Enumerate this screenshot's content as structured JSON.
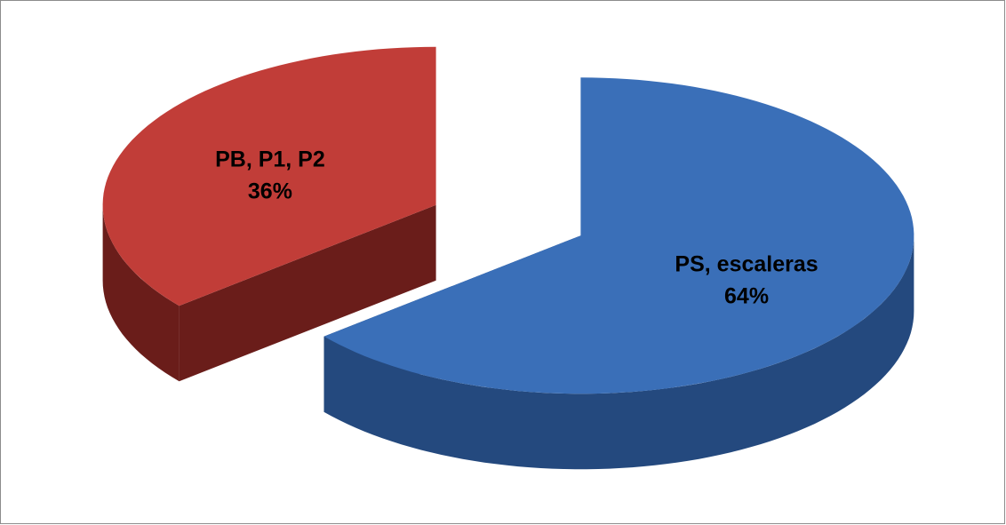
{
  "chart_data": {
    "type": "pie",
    "categories": [
      "PS, escaleras",
      "PB, P1, P2"
    ],
    "values": [
      64,
      36
    ],
    "value_labels": [
      "64%",
      "36%"
    ],
    "colors": [
      "#3a6fb8",
      "#c13d38"
    ],
    "side_colors": [
      "#24497e",
      "#6a1d1a"
    ],
    "three_d": true,
    "exploded": true
  }
}
